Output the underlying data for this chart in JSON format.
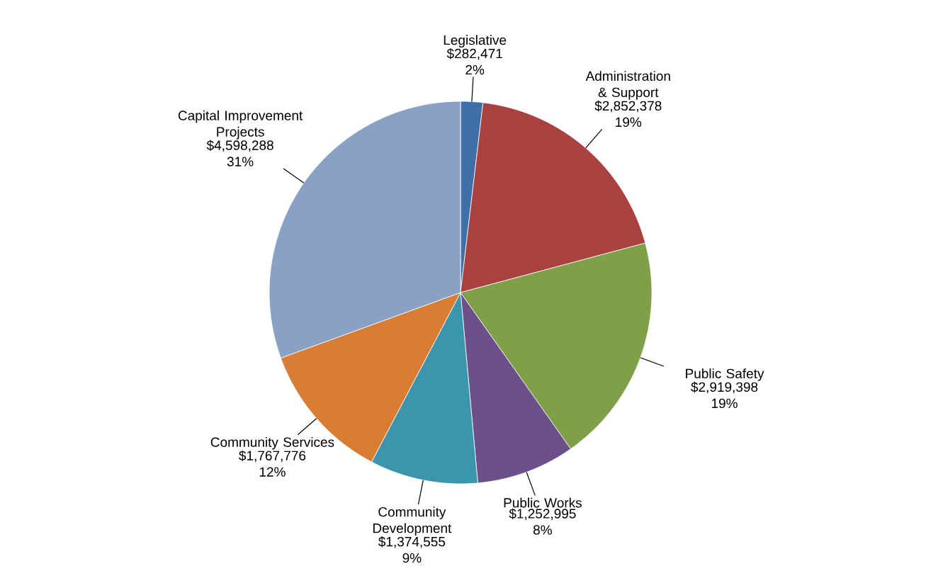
{
  "chart_data": {
    "type": "pie",
    "categories": [
      "Legislative",
      "Administration & Support",
      "Public Safety",
      "Public Works",
      "Community Development",
      "Community Services",
      "Capital Improvement Projects"
    ],
    "values": [
      282471,
      2852378,
      2919398,
      1252995,
      1374555,
      1767776,
      4598288
    ],
    "colors": [
      "#3f6fa7",
      "#a84240",
      "#7fa048",
      "#6b5089",
      "#3a95ad",
      "#d97d35",
      "#8aa1c6"
    ],
    "value_labels": [
      "$282,471 2%",
      "$2,852,378 19%",
      "$2,919,398 19%",
      "$1,252,995 8%",
      "$1,374,555 9%",
      "$1,767,776 12%",
      "$4,598,288 31%"
    ]
  }
}
